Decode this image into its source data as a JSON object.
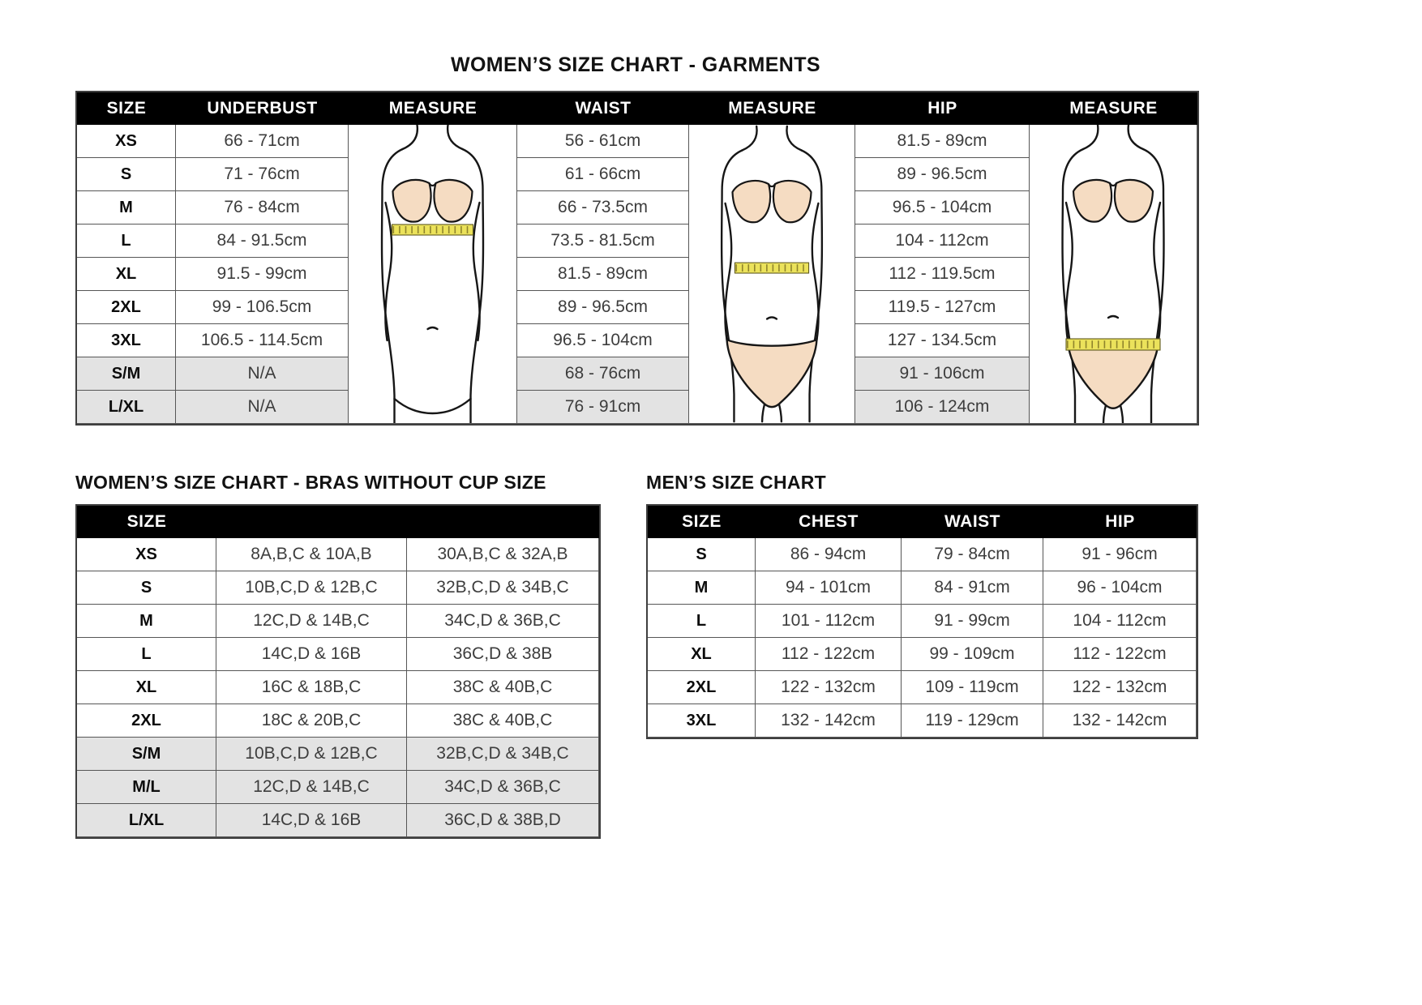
{
  "colors": {
    "header_bg": "#000000",
    "header_text": "#ffffff",
    "shaded_row_bg": "#e3e3e3",
    "table_border": "#4f4f4f",
    "skin_tone": "#f5dcc2",
    "tape_yellow": "#ebe25b"
  },
  "figures": {
    "underbust": "female-torso-underbust-measure",
    "waist": "female-torso-waist-measure",
    "hip": "female-torso-hip-measure"
  },
  "garments_chart": {
    "title": "WOMEN’S SIZE CHART - GARMENTS",
    "headers": [
      "SIZE",
      "UNDERBUST",
      "MEASURE",
      "WAIST",
      "MEASURE",
      "HIP",
      "MEASURE"
    ],
    "rows": [
      {
        "size": "XS",
        "underbust": "66 - 71cm",
        "waist": "56 - 61cm",
        "hip": "81.5 - 89cm",
        "shaded": false
      },
      {
        "size": "S",
        "underbust": "71 - 76cm",
        "waist": "61 - 66cm",
        "hip": "89 - 96.5cm",
        "shaded": false
      },
      {
        "size": "M",
        "underbust": "76 - 84cm",
        "waist": "66 - 73.5cm",
        "hip": "96.5 - 104cm",
        "shaded": false
      },
      {
        "size": "L",
        "underbust": "84 - 91.5cm",
        "waist": "73.5 - 81.5cm",
        "hip": "104 - 112cm",
        "shaded": false
      },
      {
        "size": "XL",
        "underbust": "91.5 - 99cm",
        "waist": "81.5 - 89cm",
        "hip": "112 - 119.5cm",
        "shaded": false
      },
      {
        "size": "2XL",
        "underbust": "99 - 106.5cm",
        "waist": "89 - 96.5cm",
        "hip": "119.5 - 127cm",
        "shaded": false
      },
      {
        "size": "3XL",
        "underbust": "106.5 - 114.5cm",
        "waist": "96.5 - 104cm",
        "hip": "127 - 134.5cm",
        "shaded": false
      },
      {
        "size": "S/M",
        "underbust": "N/A",
        "waist": "68 - 76cm",
        "hip": "91 - 106cm",
        "shaded": true
      },
      {
        "size": "L/XL",
        "underbust": "N/A",
        "waist": "76 - 91cm",
        "hip": "106 - 124cm",
        "shaded": true
      }
    ]
  },
  "bras_chart": {
    "title": "WOMEN’S SIZE CHART - BRAS WITHOUT CUP SIZE",
    "header": "SIZE",
    "rows": [
      {
        "size": "XS",
        "au": "8A,B,C & 10A,B",
        "us": "30A,B,C & 32A,B",
        "shaded": false
      },
      {
        "size": "S",
        "au": "10B,C,D & 12B,C",
        "us": "32B,C,D & 34B,C",
        "shaded": false
      },
      {
        "size": "M",
        "au": "12C,D & 14B,C",
        "us": "34C,D & 36B,C",
        "shaded": false
      },
      {
        "size": "L",
        "au": "14C,D & 16B",
        "us": "36C,D & 38B",
        "shaded": false
      },
      {
        "size": "XL",
        "au": "16C & 18B,C",
        "us": "38C & 40B,C",
        "shaded": false
      },
      {
        "size": "2XL",
        "au": "18C & 20B,C",
        "us": "38C & 40B,C",
        "shaded": false
      },
      {
        "size": "S/M",
        "au": "10B,C,D & 12B,C",
        "us": "32B,C,D & 34B,C",
        "shaded": true
      },
      {
        "size": "M/L",
        "au": "12C,D & 14B,C",
        "us": "34C,D & 36B,C",
        "shaded": true
      },
      {
        "size": "L/XL",
        "au": "14C,D & 16B",
        "us": "36C,D & 38B,D",
        "shaded": true
      }
    ]
  },
  "mens_chart": {
    "title": "MEN’S SIZE CHART",
    "headers": [
      "SIZE",
      "CHEST",
      "WAIST",
      "HIP"
    ],
    "rows": [
      {
        "size": "S",
        "chest": "86 - 94cm",
        "waist": "79 - 84cm",
        "hip": "91 - 96cm"
      },
      {
        "size": "M",
        "chest": "94 - 101cm",
        "waist": "84 - 91cm",
        "hip": "96 - 104cm"
      },
      {
        "size": "L",
        "chest": "101 - 112cm",
        "waist": "91 - 99cm",
        "hip": "104 - 112cm"
      },
      {
        "size": "XL",
        "chest": "112 - 122cm",
        "waist": "99 - 109cm",
        "hip": "112 - 122cm"
      },
      {
        "size": "2XL",
        "chest": "122 - 132cm",
        "waist": "109 - 119cm",
        "hip": "122 - 132cm"
      },
      {
        "size": "3XL",
        "chest": "132 - 142cm",
        "waist": "119 - 129cm",
        "hip": "132 - 142cm"
      }
    ]
  }
}
